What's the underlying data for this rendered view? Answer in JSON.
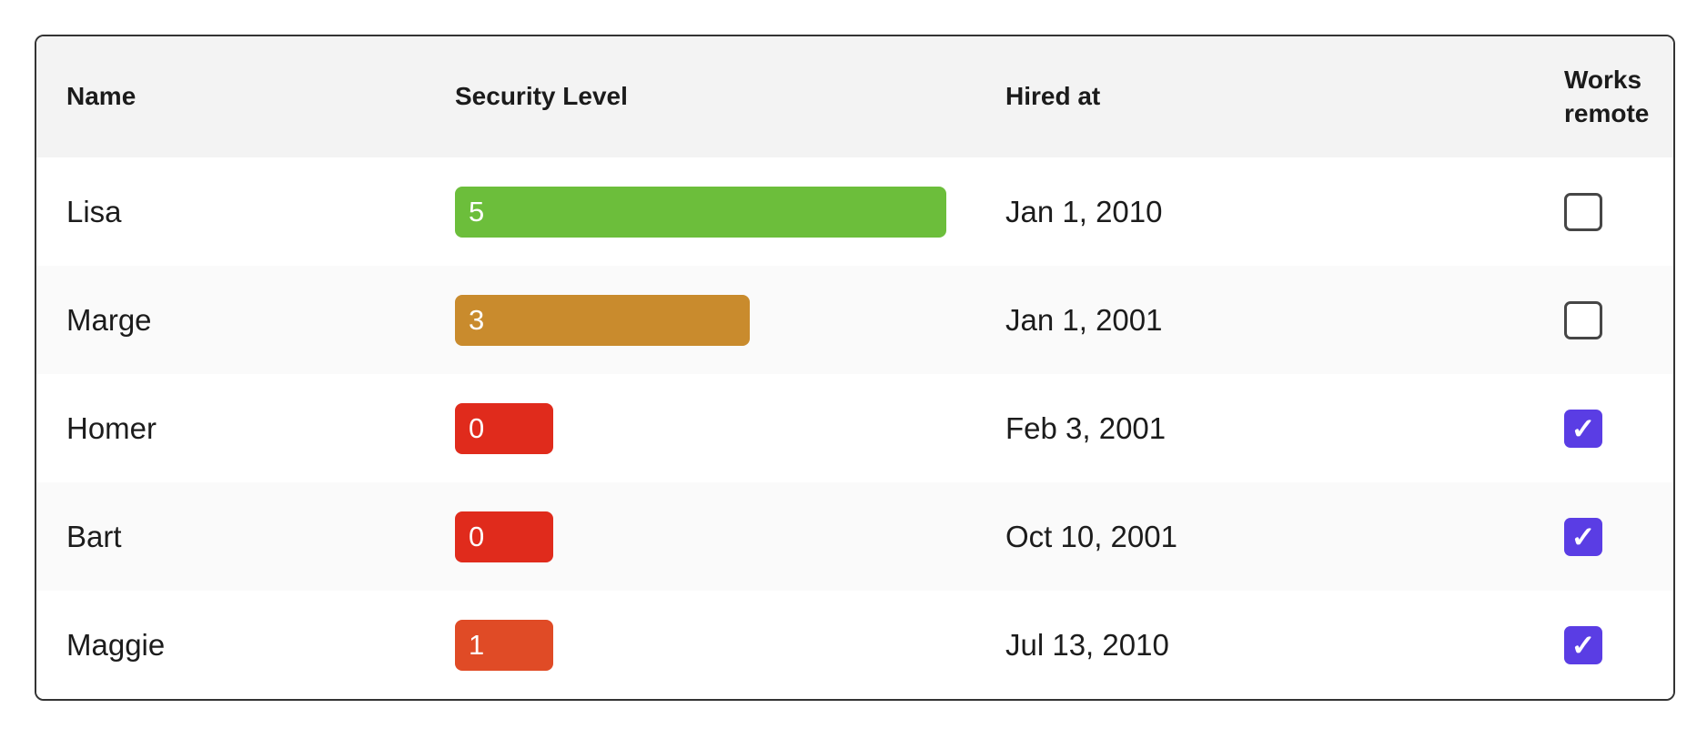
{
  "table": {
    "columns": [
      {
        "label": "Name"
      },
      {
        "label": "Security Level"
      },
      {
        "label": "Hired at"
      },
      {
        "label": "Works remote"
      }
    ],
    "rows": [
      {
        "name": "Lisa",
        "security_level": "5",
        "bar_percent": 100,
        "bar_color": "#6cbe3b",
        "hired_at": "Jan 1, 2010",
        "works_remote": false
      },
      {
        "name": "Marge",
        "security_level": "3",
        "bar_percent": 60,
        "bar_color": "#c98b2d",
        "hired_at": "Jan 1, 2001",
        "works_remote": false
      },
      {
        "name": "Homer",
        "security_level": "0",
        "bar_percent": 20,
        "bar_color": "#e02b1c",
        "hired_at": "Feb 3, 2001",
        "works_remote": true
      },
      {
        "name": "Bart",
        "security_level": "0",
        "bar_percent": 20,
        "bar_color": "#e02b1c",
        "hired_at": "Oct 10, 2001",
        "works_remote": true
      },
      {
        "name": "Maggie",
        "security_level": "1",
        "bar_percent": 20,
        "bar_color": "#e04b26",
        "hired_at": "Jul 13, 2010",
        "works_remote": true
      }
    ]
  },
  "icons": {
    "check_glyph": "✓"
  },
  "colors": {
    "checkbox_checked": "#5a3de4",
    "header_background": "#f3f3f3",
    "row_alt_background": "#fafafa",
    "card_border": "#333333",
    "bar_green": "#6cbe3b",
    "bar_gold": "#c98b2d",
    "bar_red": "#e02b1c",
    "bar_orange_red": "#e04b26"
  }
}
